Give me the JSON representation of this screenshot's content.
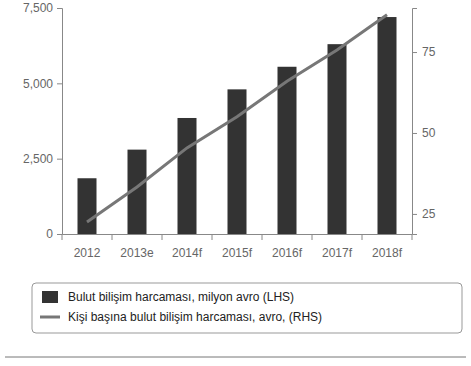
{
  "chart_data": {
    "type": "bar",
    "categories": [
      "2012",
      "2013e",
      "2014f",
      "2015f",
      "2016f",
      "2017f",
      "2018f"
    ],
    "series": [
      {
        "name": "Bulut bilişim harcaması, milyon avro (LHS)",
        "type": "bar",
        "color": "#333333",
        "values": [
          1850,
          2800,
          3850,
          4800,
          5550,
          6300,
          7200
        ]
      },
      {
        "name": "Kişi başına bulut bilişim harcaması, avro, (RHS)",
        "type": "line",
        "color": "#777777",
        "axis": "y2",
        "values": [
          22.5,
          33.3,
          45.4,
          55,
          66,
          75.6,
          86.5
        ]
      }
    ],
    "ylim": [
      0,
      7500
    ],
    "yticks": [
      0,
      {
        "value": 2500,
        "label": "2,500"
      },
      {
        "value": 5000,
        "label": "5,000"
      },
      {
        "value": 7500,
        "label": "7,500"
      }
    ],
    "y2lim": [
      18.8,
      88.6
    ],
    "y2ticks": [
      25,
      50,
      75
    ],
    "grid": false,
    "legend": "bottom"
  }
}
